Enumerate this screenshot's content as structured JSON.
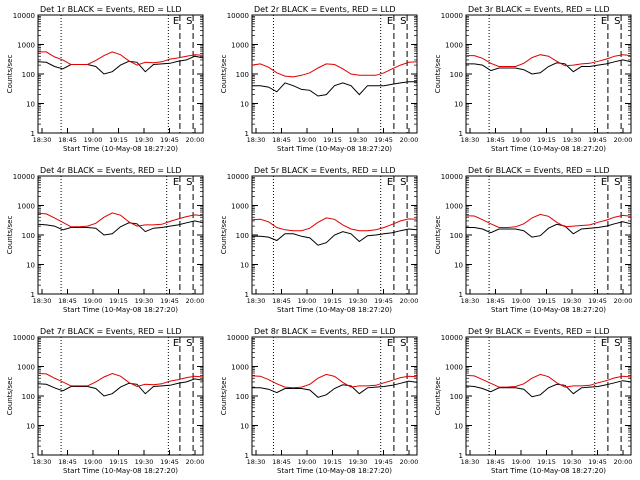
{
  "colors": {
    "events": "#000000",
    "lld": "#e00000",
    "background": "#ffffff",
    "axes": "#000000"
  },
  "chart_data": [
    {
      "type": "line",
      "title": "Det 1r  BLACK = Events, RED = LLD",
      "xlabel": "Start Time (10-May-08 18:27:20)",
      "ylabel": "Counts/sec",
      "x_ticks": [
        "18:30",
        "18:45",
        "19:00",
        "19:15",
        "19:30",
        "19:45",
        "20:00"
      ],
      "y_ticks": [
        "1",
        "10",
        "100",
        "1000",
        "10000"
      ],
      "xlim_minutes": [
        0,
        100
      ],
      "ylim": [
        1,
        10000
      ],
      "y_scale": "log",
      "x": [
        0,
        5,
        10,
        15,
        20,
        25,
        30,
        35,
        40,
        45,
        50,
        55,
        60,
        65,
        70,
        75,
        80,
        85,
        90,
        95,
        100
      ],
      "series": [
        {
          "name": "Events",
          "color": "#000000",
          "values": [
            260,
            250,
            180,
            150,
            210,
            210,
            210,
            180,
            100,
            120,
            200,
            270,
            250,
            120,
            210,
            220,
            230,
            270,
            300,
            400,
            350
          ]
        },
        {
          "name": "LLD",
          "color": "#e00000",
          "values": [
            560,
            560,
            380,
            300,
            210,
            210,
            210,
            290,
            420,
            560,
            450,
            280,
            200,
            250,
            240,
            260,
            320,
            350,
            400,
            450,
            430
          ]
        }
      ],
      "markers": [
        {
          "x_minutes": 14,
          "style": "dotted"
        },
        {
          "x_minutes": 79,
          "style": "dotted"
        },
        {
          "x_minutes": 86,
          "style": "dashed",
          "label": "E"
        },
        {
          "x_minutes": 94,
          "style": "dashed",
          "label": "S"
        }
      ]
    },
    {
      "type": "line",
      "title": "Det 2r  BLACK = Events, RED = LLD",
      "xlabel": "Start Time (10-May-08 18:27:20)",
      "ylabel": "Counts/sec",
      "x_ticks": [
        "18:30",
        "18:45",
        "19:00",
        "19:15",
        "19:30",
        "19:45",
        "20:00"
      ],
      "y_ticks": [
        "1",
        "10",
        "100",
        "1000",
        "10000"
      ],
      "xlim_minutes": [
        0,
        100
      ],
      "ylim": [
        1,
        10000
      ],
      "y_scale": "log",
      "x": [
        0,
        5,
        10,
        15,
        20,
        25,
        30,
        35,
        40,
        45,
        50,
        55,
        60,
        65,
        70,
        75,
        80,
        85,
        90,
        95,
        100
      ],
      "series": [
        {
          "name": "Events",
          "color": "#000000",
          "values": [
            40,
            40,
            36,
            25,
            50,
            40,
            30,
            28,
            18,
            20,
            40,
            50,
            40,
            20,
            40,
            40,
            40,
            45,
            50,
            55,
            55
          ]
        },
        {
          "name": "LLD",
          "color": "#e00000",
          "values": [
            200,
            220,
            170,
            110,
            85,
            80,
            90,
            110,
            160,
            220,
            210,
            150,
            100,
            90,
            90,
            90,
            110,
            150,
            200,
            250,
            260
          ]
        }
      ],
      "markers": [
        {
          "x_minutes": 13,
          "style": "dotted"
        },
        {
          "x_minutes": 78,
          "style": "dotted"
        },
        {
          "x_minutes": 86,
          "style": "dashed",
          "label": "E"
        },
        {
          "x_minutes": 94,
          "style": "dashed",
          "label": "S"
        }
      ]
    },
    {
      "type": "line",
      "title": "Det 3r  BLACK = Events, RED = LLD",
      "xlabel": "Start Time (10-May-08 18:27:20)",
      "ylabel": "Counts/sec",
      "x_ticks": [
        "18:30",
        "18:45",
        "19:00",
        "19:15",
        "19:30",
        "19:45",
        "20:00"
      ],
      "y_ticks": [
        "1",
        "10",
        "100",
        "1000",
        "10000"
      ],
      "xlim_minutes": [
        0,
        100
      ],
      "ylim": [
        1,
        10000
      ],
      "y_scale": "log",
      "x": [
        0,
        5,
        10,
        15,
        20,
        25,
        30,
        35,
        40,
        45,
        50,
        55,
        60,
        65,
        70,
        75,
        80,
        85,
        90,
        95,
        100
      ],
      "series": [
        {
          "name": "Events",
          "color": "#000000",
          "values": [
            220,
            220,
            200,
            130,
            160,
            160,
            160,
            140,
            100,
            110,
            180,
            240,
            220,
            120,
            180,
            180,
            200,
            220,
            260,
            300,
            260
          ]
        },
        {
          "name": "LLD",
          "color": "#e00000",
          "values": [
            420,
            420,
            340,
            230,
            180,
            180,
            180,
            230,
            360,
            450,
            400,
            270,
            190,
            200,
            220,
            230,
            270,
            320,
            400,
            450,
            420
          ]
        }
      ],
      "markers": [
        {
          "x_minutes": 14,
          "style": "dotted"
        },
        {
          "x_minutes": 78,
          "style": "dotted"
        },
        {
          "x_minutes": 86,
          "style": "dashed",
          "label": "E"
        },
        {
          "x_minutes": 94,
          "style": "dashed",
          "label": "S"
        }
      ]
    },
    {
      "type": "line",
      "title": "Det 4r  BLACK = Events, RED = LLD",
      "xlabel": "Start Time (10-May-08 18:27:20)",
      "ylabel": "Counts/sec",
      "x_ticks": [
        "18:30",
        "18:45",
        "19:00",
        "19:15",
        "19:30",
        "19:45",
        "20:00"
      ],
      "y_ticks": [
        "1",
        "10",
        "100",
        "1000",
        "10000"
      ],
      "xlim_minutes": [
        0,
        100
      ],
      "ylim": [
        1,
        10000
      ],
      "y_scale": "log",
      "x": [
        0,
        5,
        10,
        15,
        20,
        25,
        30,
        35,
        40,
        45,
        50,
        55,
        60,
        65,
        70,
        75,
        80,
        85,
        90,
        95,
        100
      ],
      "series": [
        {
          "name": "Events",
          "color": "#000000",
          "values": [
            230,
            220,
            200,
            150,
            180,
            180,
            180,
            170,
            100,
            110,
            190,
            260,
            240,
            130,
            170,
            180,
            200,
            220,
            260,
            300,
            260
          ]
        },
        {
          "name": "LLD",
          "color": "#e00000",
          "values": [
            550,
            520,
            380,
            270,
            190,
            190,
            200,
            250,
            400,
            560,
            470,
            280,
            200,
            220,
            220,
            230,
            290,
            350,
            420,
            480,
            450
          ]
        }
      ],
      "markers": [
        {
          "x_minutes": 14,
          "style": "dotted"
        },
        {
          "x_minutes": 78,
          "style": "dotted"
        },
        {
          "x_minutes": 86,
          "style": "dashed",
          "label": "E"
        },
        {
          "x_minutes": 94,
          "style": "dashed",
          "label": "S"
        }
      ]
    },
    {
      "type": "line",
      "title": "Det 5r  BLACK = Events, RED = LLD",
      "xlabel": "Start Time (10-May-08 18:27:20)",
      "ylabel": "Counts/sec",
      "x_ticks": [
        "18:30",
        "18:45",
        "19:00",
        "19:15",
        "19:30",
        "19:45",
        "20:00"
      ],
      "y_ticks": [
        "1",
        "10",
        "100",
        "1000",
        "10000"
      ],
      "xlim_minutes": [
        0,
        100
      ],
      "ylim": [
        1,
        10000
      ],
      "y_scale": "log",
      "x": [
        0,
        5,
        10,
        15,
        20,
        25,
        30,
        35,
        40,
        45,
        50,
        55,
        60,
        65,
        70,
        75,
        80,
        85,
        90,
        95,
        100
      ],
      "series": [
        {
          "name": "Events",
          "color": "#000000",
          "values": [
            90,
            90,
            85,
            65,
            110,
            110,
            90,
            80,
            45,
            55,
            100,
            130,
            110,
            60,
            95,
            100,
            110,
            120,
            140,
            160,
            150
          ]
        },
        {
          "name": "LLD",
          "color": "#e00000",
          "values": [
            330,
            340,
            280,
            180,
            150,
            140,
            140,
            170,
            270,
            380,
            340,
            220,
            160,
            140,
            140,
            150,
            180,
            230,
            300,
            350,
            340
          ]
        }
      ],
      "markers": [
        {
          "x_minutes": 13,
          "style": "dotted"
        },
        {
          "x_minutes": 78,
          "style": "dotted"
        },
        {
          "x_minutes": 86,
          "style": "dashed",
          "label": "E"
        },
        {
          "x_minutes": 94,
          "style": "dashed",
          "label": "S"
        }
      ]
    },
    {
      "type": "line",
      "title": "Det 6r  BLACK = Events, RED = LLD",
      "xlabel": "Start Time (10-May-08 18:27:20)",
      "ylabel": "Counts/sec",
      "x_ticks": [
        "18:30",
        "18:45",
        "19:00",
        "19:15",
        "19:30",
        "19:45",
        "20:00"
      ],
      "y_ticks": [
        "1",
        "10",
        "100",
        "1000",
        "10000"
      ],
      "xlim_minutes": [
        0,
        100
      ],
      "ylim": [
        1,
        10000
      ],
      "y_scale": "log",
      "x": [
        0,
        5,
        10,
        15,
        20,
        25,
        30,
        35,
        40,
        45,
        50,
        55,
        60,
        65,
        70,
        75,
        80,
        85,
        90,
        95,
        100
      ],
      "series": [
        {
          "name": "Events",
          "color": "#000000",
          "values": [
            180,
            180,
            160,
            120,
            160,
            160,
            160,
            140,
            85,
            95,
            170,
            230,
            200,
            110,
            160,
            170,
            180,
            200,
            240,
            280,
            240
          ]
        },
        {
          "name": "LLD",
          "color": "#e00000",
          "values": [
            450,
            440,
            330,
            240,
            180,
            180,
            190,
            240,
            380,
            500,
            430,
            270,
            190,
            200,
            210,
            220,
            270,
            320,
            400,
            460,
            430
          ]
        }
      ],
      "markers": [
        {
          "x_minutes": 14,
          "style": "dotted"
        },
        {
          "x_minutes": 78,
          "style": "dotted"
        },
        {
          "x_minutes": 86,
          "style": "dashed",
          "label": "E"
        },
        {
          "x_minutes": 94,
          "style": "dashed",
          "label": "S"
        }
      ]
    },
    {
      "type": "line",
      "title": "Det 7r  BLACK = Events, RED = LLD",
      "xlabel": "Start Time (10-May-08 18:27:20)",
      "ylabel": "Counts/sec",
      "x_ticks": [
        "18:30",
        "18:45",
        "19:00",
        "19:15",
        "19:30",
        "19:45",
        "20:00"
      ],
      "y_ticks": [
        "1",
        "10",
        "100",
        "1000",
        "10000"
      ],
      "xlim_minutes": [
        0,
        100
      ],
      "ylim": [
        1,
        10000
      ],
      "y_scale": "log",
      "x": [
        0,
        5,
        10,
        15,
        20,
        25,
        30,
        35,
        40,
        45,
        50,
        55,
        60,
        65,
        70,
        75,
        80,
        85,
        90,
        95,
        100
      ],
      "series": [
        {
          "name": "Events",
          "color": "#000000",
          "values": [
            260,
            250,
            190,
            150,
            210,
            210,
            210,
            180,
            100,
            120,
            200,
            270,
            250,
            120,
            210,
            220,
            230,
            270,
            300,
            380,
            340
          ]
        },
        {
          "name": "LLD",
          "color": "#e00000",
          "values": [
            580,
            560,
            400,
            300,
            220,
            220,
            220,
            300,
            440,
            580,
            470,
            290,
            210,
            250,
            240,
            260,
            320,
            360,
            420,
            470,
            440
          ]
        }
      ],
      "markers": [
        {
          "x_minutes": 14,
          "style": "dotted"
        },
        {
          "x_minutes": 79,
          "style": "dotted"
        },
        {
          "x_minutes": 86,
          "style": "dashed",
          "label": "E"
        },
        {
          "x_minutes": 94,
          "style": "dashed",
          "label": "S"
        }
      ]
    },
    {
      "type": "line",
      "title": "Det 8r  BLACK = Events, RED = LLD",
      "xlabel": "Start Time (10-May-08 18:27:20)",
      "ylabel": "Counts/sec",
      "x_ticks": [
        "18:30",
        "18:45",
        "19:00",
        "19:15",
        "19:30",
        "19:45",
        "20:00"
      ],
      "y_ticks": [
        "1",
        "10",
        "100",
        "1000",
        "10000"
      ],
      "xlim_minutes": [
        0,
        100
      ],
      "ylim": [
        1,
        10000
      ],
      "y_scale": "log",
      "x": [
        0,
        5,
        10,
        15,
        20,
        25,
        30,
        35,
        40,
        45,
        50,
        55,
        60,
        65,
        70,
        75,
        80,
        85,
        90,
        95,
        100
      ],
      "series": [
        {
          "name": "Events",
          "color": "#000000",
          "values": [
            190,
            190,
            170,
            130,
            180,
            180,
            180,
            160,
            90,
            110,
            180,
            240,
            220,
            120,
            190,
            200,
            210,
            230,
            270,
            320,
            290
          ]
        },
        {
          "name": "LLD",
          "color": "#e00000",
          "values": [
            480,
            470,
            360,
            260,
            200,
            190,
            200,
            250,
            400,
            540,
            460,
            290,
            200,
            220,
            220,
            230,
            280,
            340,
            420,
            470,
            450
          ]
        }
      ],
      "markers": [
        {
          "x_minutes": 13,
          "style": "dotted"
        },
        {
          "x_minutes": 78,
          "style": "dotted"
        },
        {
          "x_minutes": 86,
          "style": "dashed",
          "label": "E"
        },
        {
          "x_minutes": 94,
          "style": "dashed",
          "label": "S"
        }
      ]
    },
    {
      "type": "line",
      "title": "Det 9r  BLACK = Events, RED = LLD",
      "xlabel": "Start Time (10-May-08 18:27:20)",
      "ylabel": "Counts/sec",
      "x_ticks": [
        "18:30",
        "18:45",
        "19:00",
        "19:15",
        "19:30",
        "19:45",
        "20:00"
      ],
      "y_ticks": [
        "1",
        "10",
        "100",
        "1000",
        "10000"
      ],
      "xlim_minutes": [
        0,
        100
      ],
      "ylim": [
        1,
        10000
      ],
      "y_scale": "log",
      "x": [
        0,
        5,
        10,
        15,
        20,
        25,
        30,
        35,
        40,
        45,
        50,
        55,
        60,
        65,
        70,
        75,
        80,
        85,
        90,
        95,
        100
      ],
      "series": [
        {
          "name": "Events",
          "color": "#000000",
          "values": [
            220,
            210,
            180,
            140,
            190,
            190,
            190,
            170,
            95,
            110,
            190,
            250,
            230,
            120,
            190,
            200,
            210,
            240,
            280,
            330,
            300
          ]
        },
        {
          "name": "LLD",
          "color": "#e00000",
          "values": [
            500,
            480,
            360,
            270,
            200,
            200,
            210,
            260,
            400,
            540,
            450,
            280,
            200,
            220,
            220,
            230,
            280,
            330,
            410,
            470,
            440
          ]
        }
      ],
      "markers": [
        {
          "x_minutes": 14,
          "style": "dotted"
        },
        {
          "x_minutes": 78,
          "style": "dotted"
        },
        {
          "x_minutes": 86,
          "style": "dashed",
          "label": "E"
        },
        {
          "x_minutes": 94,
          "style": "dashed",
          "label": "S"
        }
      ]
    }
  ]
}
